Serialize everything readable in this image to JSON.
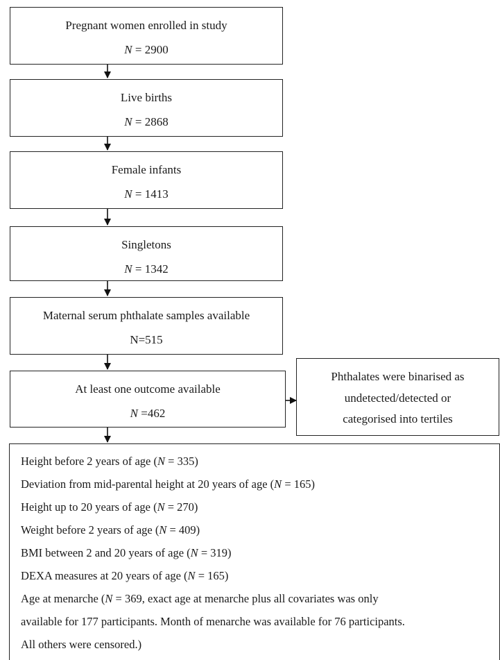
{
  "flow": [
    {
      "label": "Pregnant women enrolled in study",
      "n_prefix": "N",
      "n_value": " = 2900"
    },
    {
      "label": "Live births",
      "n_prefix": "N",
      "n_value": " = 2868"
    },
    {
      "label": "Female infants",
      "n_prefix": "N",
      "n_value": " = 1413"
    },
    {
      "label": "Singletons",
      "n_prefix": "N",
      "n_value": " = 1342"
    },
    {
      "label": "Maternal serum phthalate samples available",
      "n_prefix": "",
      "n_value": "N=515"
    },
    {
      "label": "At least one outcome available",
      "n_prefix": "N",
      "n_value": " =462"
    }
  ],
  "side_note": {
    "lines": [
      "Phthalates were binarised as",
      "undetected/detected or",
      "categorised into tertiles"
    ]
  },
  "outcomes": [
    {
      "pre": "Height before 2 years of age (",
      "n": "N",
      "post": " = 335)"
    },
    {
      "pre": "Deviation from mid-parental height at 20 years of age (",
      "n": "N",
      "post": " = 165)"
    },
    {
      "pre": "Height up to 20 years of age (",
      "n": "N",
      "post": " = 270)"
    },
    {
      "pre": "Weight before 2 years of age (",
      "n": "N",
      "post": " = 409)"
    },
    {
      "pre": "BMI between 2 and 20 years of age (",
      "n": "N",
      "post": " = 319)"
    },
    {
      "pre": "DEXA measures at 20 years of age (",
      "n": "N",
      "post": " = 165)"
    },
    {
      "pre": "Age at menarche (",
      "n": "N",
      "post": " = 369, exact age at menarche plus all covariates was only"
    },
    {
      "pre": "available for 177 participants. Month of menarche was available for 76 participants.",
      "n": "",
      "post": ""
    },
    {
      "pre": "All others were censored.)",
      "n": "",
      "post": ""
    }
  ]
}
